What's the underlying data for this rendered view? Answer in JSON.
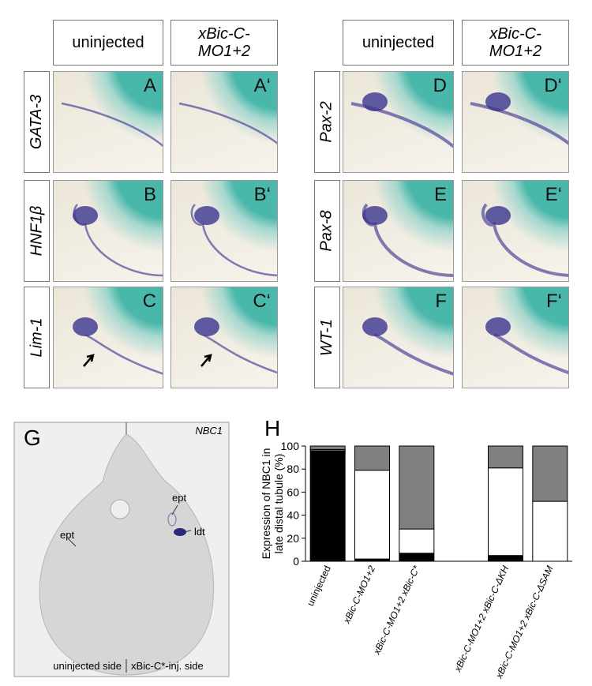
{
  "panel_grid": {
    "left": {
      "headers": [
        "uninjected",
        "xBic-C-MO1+2"
      ],
      "rows": [
        {
          "gene": "GATA-3",
          "letters": [
            "A",
            "A‘"
          ]
        },
        {
          "gene": "HNF1β",
          "letters": [
            "B",
            "B‘"
          ]
        },
        {
          "gene": "Lim-1",
          "letters": [
            "C",
            "C‘"
          ]
        }
      ]
    },
    "right": {
      "headers": [
        "uninjected",
        "xBic-C-MO1+2"
      ],
      "rows": [
        {
          "gene": "Pax-2",
          "letters": [
            "D",
            "D‘"
          ]
        },
        {
          "gene": "Pax-8",
          "letters": [
            "E",
            "E‘"
          ]
        },
        {
          "gene": "WT-1",
          "letters": [
            "F",
            "F‘"
          ]
        }
      ]
    }
  },
  "panel_g": {
    "letter": "G",
    "gene": "NBC1",
    "labels": [
      "ept",
      "ept",
      "ldt"
    ],
    "sides": [
      "uninjected side",
      "xBic-C*-inj. side"
    ]
  },
  "chart_data": {
    "type": "bar",
    "stacked": true,
    "title": "H",
    "ylabel": [
      "Expression of NBC1 in",
      "late distal tubule (%)"
    ],
    "categories": [
      "uninjected",
      "xBic-C-MO1+2",
      "xBic-C-MO1+2 xBic-C*",
      null,
      "xBic-C-MO1+2 xBic-C-ΔKH",
      "xBic-C-MO1+2 xBic-C-ΔSAM"
    ],
    "series": [
      {
        "color": "#000000",
        "values": [
          96,
          2,
          7,
          null,
          5,
          0
        ]
      },
      {
        "color": "#ffffff",
        "values": [
          1,
          77,
          21,
          null,
          76,
          52
        ]
      },
      {
        "color": "#808080",
        "values": [
          3,
          21,
          72,
          null,
          19,
          48
        ]
      }
    ],
    "ylim": [
      0,
      100
    ],
    "yticks": [
      0,
      20,
      40,
      60,
      80,
      100
    ]
  }
}
